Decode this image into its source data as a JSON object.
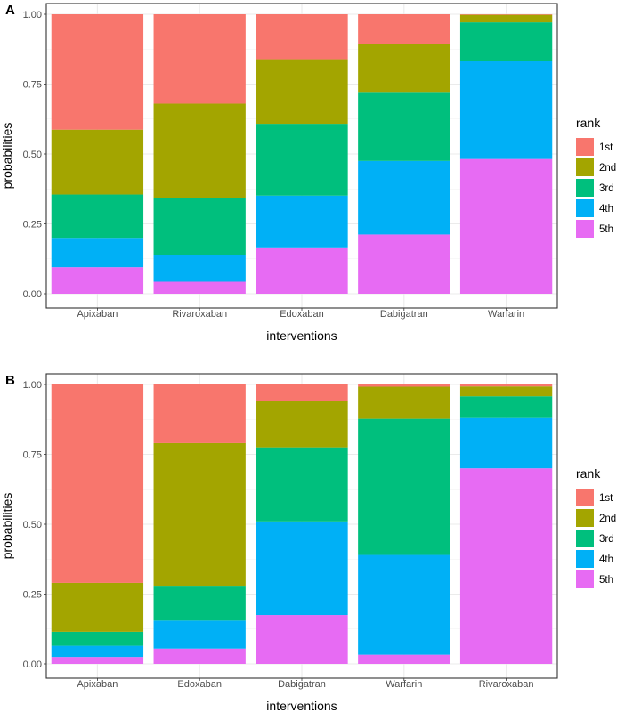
{
  "chart_data": [
    {
      "panel_label": "A",
      "type": "bar",
      "stacked": true,
      "categories": [
        "Apixaban",
        "Rivaroxaban",
        "Edoxaban",
        "Dabigatran",
        "Warfarin"
      ],
      "series": [
        {
          "name": "5th",
          "color": "#E76BF3",
          "values": [
            0.095,
            0.043,
            0.163,
            0.212,
            0.482
          ]
        },
        {
          "name": "4th",
          "color": "#00B0F6",
          "values": [
            0.105,
            0.097,
            0.188,
            0.263,
            0.352
          ]
        },
        {
          "name": "3rd",
          "color": "#00BF7D",
          "values": [
            0.155,
            0.203,
            0.257,
            0.247,
            0.137
          ]
        },
        {
          "name": "2nd",
          "color": "#A3A500",
          "values": [
            0.232,
            0.337,
            0.231,
            0.17,
            0.027
          ]
        },
        {
          "name": "1st",
          "color": "#F8766D",
          "values": [
            0.413,
            0.32,
            0.161,
            0.108,
            0.002
          ]
        }
      ],
      "xlabel": "interventions",
      "ylabel": "probabilities",
      "ylim": [
        0,
        1
      ],
      "yticks": [
        "0.00",
        "0.25",
        "0.50",
        "0.75",
        "1.00"
      ],
      "legend": {
        "title": "rank",
        "labels": [
          "1st",
          "2nd",
          "3rd",
          "4th",
          "5th"
        ]
      }
    },
    {
      "panel_label": "B",
      "type": "bar",
      "stacked": true,
      "categories": [
        "Apixaban",
        "Edoxaban",
        "Dabigatran",
        "Warfarin",
        "Rivaroxaban"
      ],
      "series": [
        {
          "name": "5th",
          "color": "#E76BF3",
          "values": [
            0.025,
            0.055,
            0.175,
            0.033,
            0.7
          ]
        },
        {
          "name": "4th",
          "color": "#00B0F6",
          "values": [
            0.04,
            0.1,
            0.335,
            0.357,
            0.18
          ]
        },
        {
          "name": "3rd",
          "color": "#00BF7D",
          "values": [
            0.05,
            0.125,
            0.265,
            0.487,
            0.078
          ]
        },
        {
          "name": "2nd",
          "color": "#A3A500",
          "values": [
            0.175,
            0.51,
            0.165,
            0.115,
            0.035
          ]
        },
        {
          "name": "1st",
          "color": "#F8766D",
          "values": [
            0.71,
            0.21,
            0.06,
            0.008,
            0.007
          ]
        }
      ],
      "xlabel": "interventions",
      "ylabel": "probabilities",
      "ylim": [
        0,
        1
      ],
      "yticks": [
        "0.00",
        "0.25",
        "0.50",
        "0.75",
        "1.00"
      ],
      "legend": {
        "title": "rank",
        "labels": [
          "1st",
          "2nd",
          "3rd",
          "4th",
          "5th"
        ]
      }
    }
  ]
}
